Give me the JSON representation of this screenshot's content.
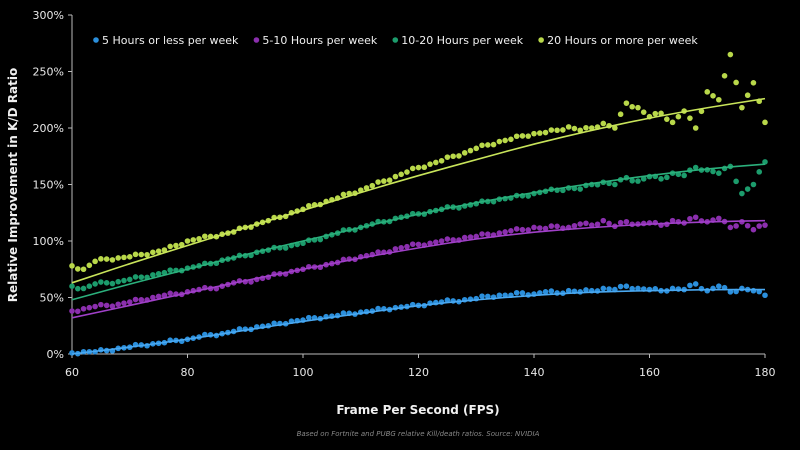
{
  "chart_data": {
    "type": "scatter",
    "xlabel": "Frame Per Second (FPS)",
    "ylabel": "Relative Improvement in K/D Ratio",
    "footnote": "Based on Fortnite and PUBG relative Kill/death ratios. Source: NVIDIA",
    "xlim": [
      60,
      180
    ],
    "ylim": [
      0,
      300
    ],
    "x_ticks": [
      60,
      80,
      100,
      120,
      140,
      160,
      180
    ],
    "x_tick_labels": [
      "60",
      "80",
      "100",
      "120",
      "140",
      "160",
      "180"
    ],
    "y_ticks": [
      0,
      50,
      100,
      150,
      200,
      250,
      300
    ],
    "y_tick_labels": [
      "0%",
      "50%",
      "100%",
      "150%",
      "200%",
      "250%",
      "300%"
    ],
    "grid": false,
    "legend_position": "top",
    "x_start": 60,
    "x_step": 2,
    "trend_x_step": 10,
    "series": [
      {
        "name": "5 Hours or less per week",
        "color": "#2b8fdc",
        "line_color": "#4aa8f0",
        "values": [
          1,
          2,
          2,
          3,
          5,
          6,
          8,
          9,
          10,
          12,
          13,
          15,
          17,
          18,
          20,
          22,
          24,
          25,
          27,
          29,
          30,
          32,
          33,
          34,
          36,
          37,
          38,
          40,
          41,
          42,
          43,
          45,
          46,
          47,
          48,
          49,
          51,
          52,
          52,
          54,
          53,
          55,
          54,
          56,
          55,
          56,
          58,
          57,
          60,
          58,
          57,
          56,
          58,
          57,
          62,
          56,
          60,
          55,
          58,
          56,
          52
        ],
        "trend": [
          0,
          6,
          13,
          21,
          29,
          36,
          43,
          48,
          52,
          55,
          56,
          57,
          57
        ]
      },
      {
        "name": "5-10 Hours per week",
        "color": "#8b2fae",
        "line_color": "#a040c8",
        "values": [
          38,
          40,
          42,
          43,
          44,
          46,
          48,
          50,
          52,
          53,
          55,
          57,
          58,
          60,
          63,
          64,
          66,
          68,
          71,
          73,
          75,
          77,
          79,
          81,
          84,
          86,
          88,
          90,
          93,
          95,
          97,
          98,
          100,
          101,
          103,
          104,
          106,
          107,
          109,
          110,
          112,
          111,
          113,
          112,
          115,
          114,
          118,
          113,
          117,
          115,
          116,
          114,
          118,
          116,
          121,
          117,
          120,
          112,
          117,
          110,
          114
        ],
        "trend": [
          32,
          43,
          54,
          65,
          75,
          85,
          94,
          102,
          108,
          112,
          115,
          117,
          118
        ]
      },
      {
        "name": "10-20 Hours per week",
        "color": "#1c9c6c",
        "line_color": "#2bb07c",
        "values": [
          60,
          58,
          62,
          63,
          64,
          66,
          68,
          70,
          72,
          74,
          76,
          78,
          80,
          83,
          85,
          87,
          90,
          92,
          94,
          96,
          98,
          101,
          104,
          107,
          110,
          112,
          115,
          117,
          120,
          122,
          124,
          126,
          128,
          130,
          131,
          133,
          135,
          137,
          138,
          140,
          142,
          144,
          145,
          147,
          146,
          150,
          152,
          150,
          156,
          153,
          157,
          155,
          160,
          158,
          165,
          163,
          160,
          166,
          142,
          150,
          170
        ],
        "trend": [
          48,
          62,
          75,
          88,
          100,
          112,
          124,
          134,
          143,
          151,
          158,
          164,
          168
        ]
      },
      {
        "name": "20 Hours or more per week",
        "color": "#b9d84a",
        "line_color": "#c8e45a",
        "values": [
          78,
          75,
          82,
          84,
          85,
          86,
          88,
          90,
          92,
          96,
          100,
          102,
          104,
          106,
          108,
          112,
          115,
          118,
          121,
          125,
          128,
          132,
          135,
          138,
          142,
          145,
          149,
          153,
          157,
          161,
          165,
          168,
          171,
          175,
          178,
          182,
          185,
          188,
          190,
          193,
          195,
          196,
          198,
          201,
          198,
          200,
          204,
          200,
          222,
          218,
          210,
          213,
          205,
          215,
          200,
          232,
          225,
          265,
          218,
          240,
          205
        ],
        "trend": [
          63,
          80,
          96,
          112,
          127,
          143,
          158,
          172,
          186,
          198,
          209,
          218,
          226
        ]
      }
    ]
  }
}
